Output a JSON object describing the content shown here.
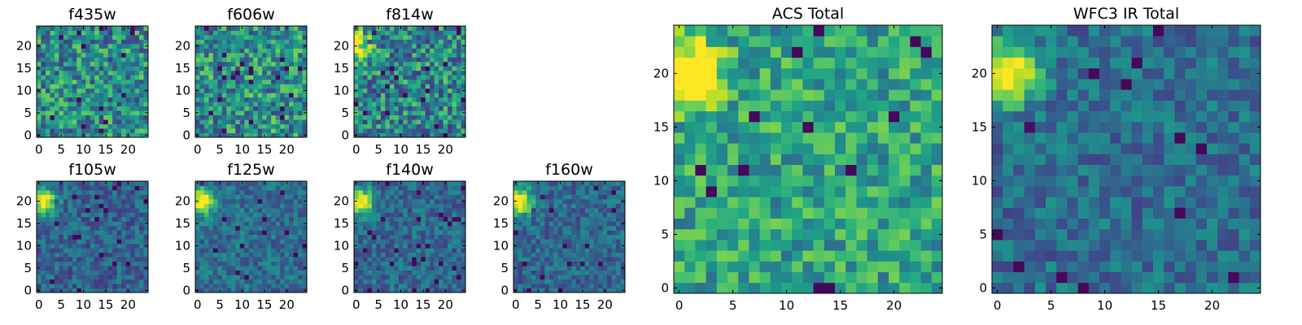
{
  "chart_data": [
    {
      "type": "heatmap",
      "title": "f435w",
      "grid_size": 25,
      "peak": null,
      "noise": 0.3,
      "floor": 0.48,
      "seed": 11,
      "xticks": [
        0,
        5,
        10,
        15,
        20
      ],
      "yticks": [
        0,
        5,
        10,
        15,
        20
      ],
      "xlim": [
        0,
        24
      ],
      "ylim": [
        0,
        24
      ],
      "colormap": "viridis"
    },
    {
      "type": "heatmap",
      "title": "f606w",
      "grid_size": 25,
      "peak": null,
      "noise": 0.3,
      "floor": 0.5,
      "seed": 23,
      "xticks": [
        0,
        5,
        10,
        15,
        20
      ],
      "yticks": [
        0,
        5,
        10,
        15,
        20
      ],
      "xlim": [
        0,
        24
      ],
      "ylim": [
        0,
        24
      ],
      "colormap": "viridis"
    },
    {
      "type": "heatmap",
      "title": "f814w",
      "grid_size": 25,
      "peak": [
        0,
        20
      ],
      "noise": 0.3,
      "floor": 0.46,
      "seed": 37,
      "xticks": [
        0,
        5,
        10,
        15,
        20
      ],
      "yticks": [
        0,
        5,
        10,
        15,
        20
      ],
      "xlim": [
        0,
        24
      ],
      "ylim": [
        0,
        24
      ],
      "colormap": "viridis"
    },
    {
      "type": "heatmap",
      "title": "f105w",
      "grid_size": 25,
      "peak": [
        1,
        20
      ],
      "noise": 0.16,
      "floor": 0.32,
      "seed": 41,
      "xticks": [
        0,
        5,
        10,
        15,
        20
      ],
      "yticks": [
        0,
        5,
        10,
        15,
        20
      ],
      "xlim": [
        0,
        24
      ],
      "ylim": [
        0,
        24
      ],
      "colormap": "viridis"
    },
    {
      "type": "heatmap",
      "title": "f125w",
      "grid_size": 25,
      "peak": [
        1,
        20
      ],
      "noise": 0.16,
      "floor": 0.36,
      "seed": 53,
      "xticks": [
        0,
        5,
        10,
        15,
        20
      ],
      "yticks": [
        0,
        5,
        10,
        15,
        20
      ],
      "xlim": [
        0,
        24
      ],
      "ylim": [
        0,
        24
      ],
      "colormap": "viridis"
    },
    {
      "type": "heatmap",
      "title": "f140w",
      "grid_size": 25,
      "peak": [
        1,
        20
      ],
      "noise": 0.16,
      "floor": 0.34,
      "seed": 67,
      "xticks": [
        0,
        5,
        10,
        15,
        20
      ],
      "yticks": [
        0,
        5,
        10,
        15,
        20
      ],
      "xlim": [
        0,
        24
      ],
      "ylim": [
        0,
        24
      ],
      "colormap": "viridis"
    },
    {
      "type": "heatmap",
      "title": "f160w",
      "grid_size": 25,
      "peak": [
        1,
        20
      ],
      "noise": 0.16,
      "floor": 0.34,
      "seed": 79,
      "xticks": [
        0,
        5,
        10,
        15,
        20
      ],
      "yticks": [
        0,
        5,
        10,
        15,
        20
      ],
      "xlim": [
        0,
        24
      ],
      "ylim": [
        0,
        24
      ],
      "colormap": "viridis"
    },
    {
      "type": "heatmap",
      "title": "ACS Total",
      "grid_size": 25,
      "peak": [
        1,
        20
      ],
      "noise": 0.22,
      "floor": 0.58,
      "seed": 97,
      "xticks": [
        0,
        5,
        10,
        15,
        20
      ],
      "yticks": [
        0,
        5,
        10,
        15,
        20
      ],
      "xlim": [
        0,
        24
      ],
      "ylim": [
        0,
        24
      ],
      "colormap": "viridis"
    },
    {
      "type": "heatmap",
      "title": "WFC3 IR Total",
      "grid_size": 25,
      "peak": [
        1,
        20
      ],
      "noise": 0.16,
      "floor": 0.36,
      "seed": 113,
      "xticks": [
        0,
        5,
        10,
        15,
        20
      ],
      "yticks": [
        0,
        5,
        10,
        15,
        20
      ],
      "xlim": [
        0,
        24
      ],
      "ylim": [
        0,
        24
      ],
      "colormap": "viridis"
    }
  ]
}
